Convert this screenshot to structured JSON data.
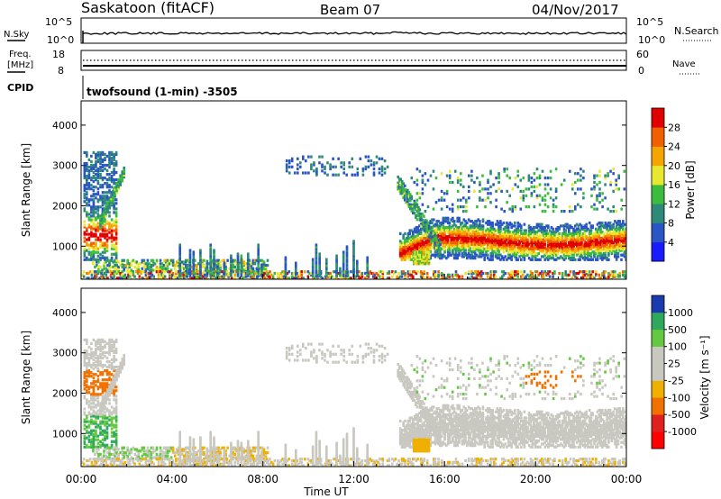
{
  "header": {
    "station": "Saskatoon (fitACF)",
    "beam": "Beam 07",
    "date": "04/Nov/2017"
  },
  "sky_panel": {
    "left_label": "N.Sky",
    "left_ticks": [
      "10^5",
      "10^0"
    ],
    "right_ticks": [
      "10^5",
      "10^0"
    ],
    "right_label": "N.Search"
  },
  "freq_panel": {
    "left_label_1": "Freq.",
    "left_label_2": "[MHz]",
    "left_ticks": [
      "18",
      "8"
    ],
    "right_ticks": [
      "60",
      "0"
    ],
    "right_label": "Nave"
  },
  "cpid": {
    "label": "CPID",
    "program": "twofsound (1-min) -3505"
  },
  "chart_data": [
    {
      "type": "heatmap",
      "quantity": "Power",
      "ylabel": "Slant Range [km]",
      "ylim": [
        180,
        4600
      ],
      "y_ticks": [
        "1000",
        "2000",
        "3000",
        "4000"
      ],
      "colorbar_label": "Power [dB]",
      "colorbar_ticks": [
        "4",
        "8",
        "12",
        "16",
        "20",
        "24",
        "28"
      ],
      "colorbar_colors": [
        "#1a1aff",
        "#2a55c4",
        "#2e8a78",
        "#3cbc3c",
        "#e8e830",
        "#f5a500",
        "#f06000",
        "#e00000"
      ],
      "colorbar_range": [
        0,
        30
      ],
      "regions": [
        {
          "time": [
            0.05,
            1.5
          ],
          "range": [
            700,
            3400
          ],
          "value": "6-26 dB, intense near 1000-1500 km"
        },
        {
          "time": [
            0.5,
            8.0
          ],
          "range": [
            200,
            700
          ],
          "value": "4-20 dB ground scatter band"
        },
        {
          "time": [
            14.0,
            24.0
          ],
          "range": [
            800,
            2800
          ],
          "value": "4-28 dB, peak ~1100 km"
        }
      ]
    },
    {
      "type": "heatmap",
      "quantity": "Velocity",
      "ylabel": "Slant Range [km]",
      "ylim": [
        180,
        4600
      ],
      "y_ticks": [
        "1000",
        "2000",
        "3000",
        "4000"
      ],
      "colorbar_label": "Velocity [m s⁻¹]",
      "colorbar_ticks": [
        "1000",
        "500",
        "100",
        "25",
        "-25",
        "-100",
        "-500",
        "-1000"
      ],
      "colorbar_colors": [
        "#1a3ab0",
        "#2ea85c",
        "#64c840",
        "#c8c8c0",
        "#c8c8c0",
        "#f0b000",
        "#f07000",
        "#e02020",
        "#ff0000"
      ],
      "regions": [
        {
          "time": [
            14.0,
            24.0
          ],
          "range": [
            800,
            2000
          ],
          "value": "-25 to 25 m/s (ground scatter, grey)"
        },
        {
          "time": [
            0.0,
            1.5
          ],
          "range": [
            700,
            3500
          ],
          "value": "-500 to 500 m/s"
        }
      ]
    }
  ],
  "x_axis": {
    "ticks": [
      "00:00",
      "04:00",
      "08:00",
      "12:00",
      "16:00",
      "20:00",
      "00:00"
    ],
    "label": "Time UT",
    "range_hours": [
      0,
      24
    ]
  }
}
